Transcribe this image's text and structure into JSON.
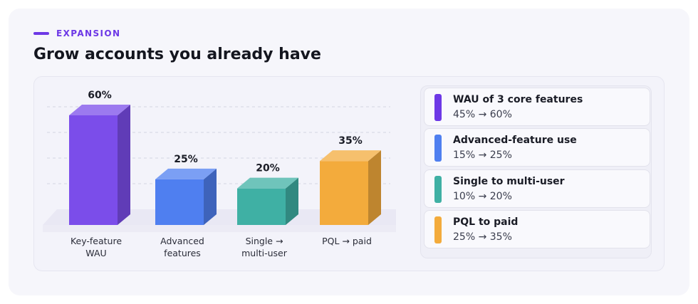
{
  "eyebrow": "EXPANSION",
  "title": "Grow accounts you already have",
  "colors": {
    "accent": "#6d38e6",
    "purple": "#7b4dea",
    "blue": "#4f7ff0",
    "teal": "#3fb0a4",
    "orange": "#f3ab3c"
  },
  "chart_data": {
    "type": "bar",
    "categories": [
      [
        "Key-feature",
        "WAU"
      ],
      [
        "Advanced",
        "features"
      ],
      [
        "Single →",
        "multi-user"
      ],
      [
        "PQL → paid"
      ]
    ],
    "values": [
      60,
      25,
      20,
      35
    ],
    "value_labels": [
      "60%",
      "25%",
      "20%",
      "35%"
    ],
    "bar_colors": [
      "#7b4dea",
      "#4f7ff0",
      "#3fb0a4",
      "#f3ab3c"
    ],
    "ylim": [
      0,
      60
    ],
    "grid": true,
    "legend_placement": "right"
  },
  "legend": [
    {
      "name": "WAU of 3 core features",
      "range": "45% → 60%",
      "color": "#6d38e6"
    },
    {
      "name": "Advanced-feature use",
      "range": "15% → 25%",
      "color": "#4f7ff0"
    },
    {
      "name": "Single to multi-user",
      "range": "10% → 20%",
      "color": "#3fb0a4"
    },
    {
      "name": "PQL to paid",
      "range": "25% → 35%",
      "color": "#f3ab3c"
    }
  ]
}
